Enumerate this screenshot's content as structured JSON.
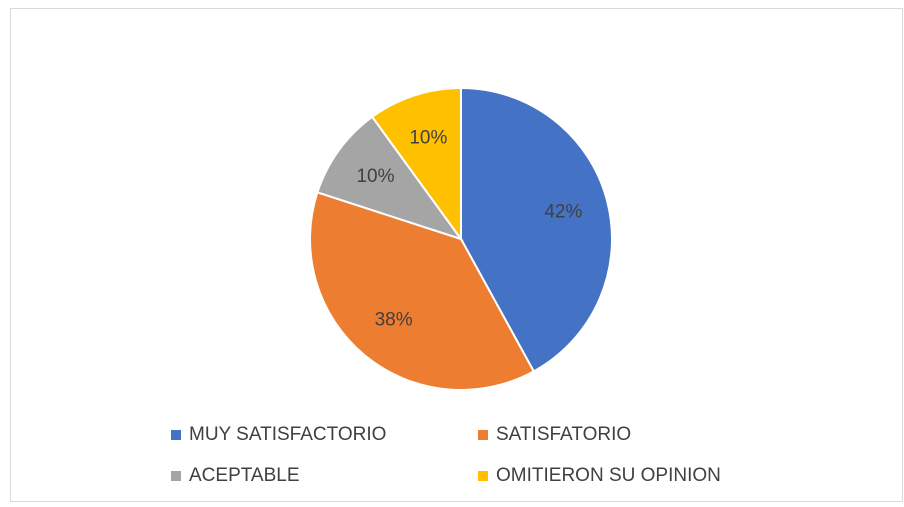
{
  "chart_data": {
    "type": "pie",
    "categories": [
      "MUY SATISFACTORIO",
      "SATISFATORIO",
      "ACEPTABLE",
      "OMITIERON SU OPINION"
    ],
    "values": [
      42,
      38,
      10,
      10
    ],
    "value_labels": [
      "42%",
      "38%",
      "10%",
      "10%"
    ],
    "colors": [
      "#4472c4",
      "#ed7d31",
      "#a5a5a5",
      "#ffc000"
    ],
    "legend": "bottom"
  }
}
